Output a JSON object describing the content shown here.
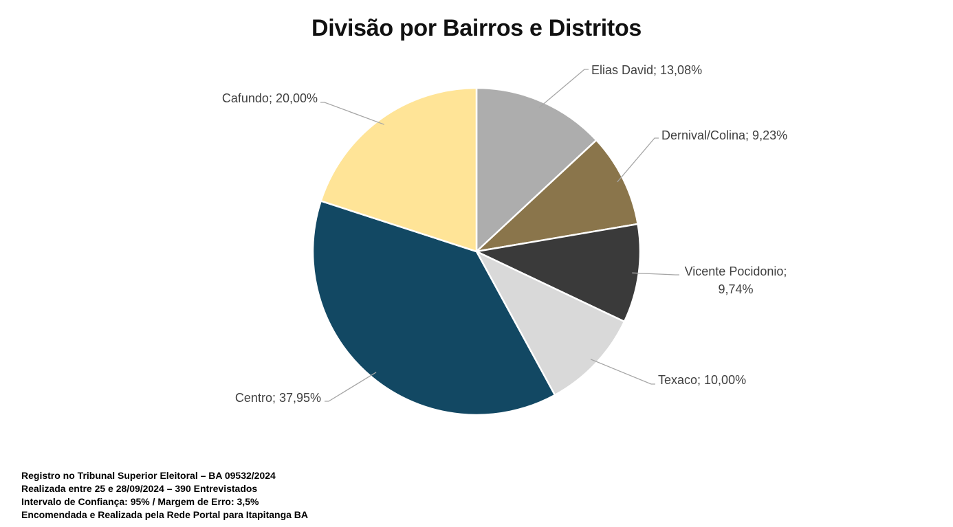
{
  "chart_data": {
    "type": "pie",
    "title": "Divisão por Bairros e Distritos",
    "slices": [
      {
        "label": "Elias David",
        "value": 13.08,
        "text": "Elias David; 13,08%",
        "color": "#ADADAD"
      },
      {
        "label": "Dernival/Colina",
        "value": 9.23,
        "text": "Dernival/Colina; 9,23%",
        "color": "#8A754B"
      },
      {
        "label": "Vicente Pocidonio",
        "value": 9.74,
        "text": "Vicente Pocidonio; 9,74%",
        "text_lines": [
          "Vicente Pocidonio;",
          "9,74%"
        ],
        "color": "#3A3A3A"
      },
      {
        "label": "Texaco",
        "value": 10.0,
        "text": "Texaco; 10,00%",
        "color": "#D9D9D9"
      },
      {
        "label": "Centro",
        "value": 37.95,
        "text": "Centro; 37,95%",
        "color": "#124863"
      },
      {
        "label": "Cafundo",
        "value": 20.0,
        "text": "Cafundo; 20,00%",
        "color": "#FFE497"
      }
    ],
    "start_angle": "12 o'clock",
    "direction": "clockwise",
    "legend": "none",
    "data_labels": "outside with leader lines"
  },
  "footer": {
    "lines": [
      "Registro no Tribunal Superior Eleitoral – BA 09532/2024",
      "Realizada entre 25 e 28/09/2024 – 390 Entrevistados",
      "Intervalo de Confiança: 95% / Margem de Erro: 3,5%",
      "Encomendada e Realizada pela Rede Portal para Itapitanga BA"
    ]
  }
}
